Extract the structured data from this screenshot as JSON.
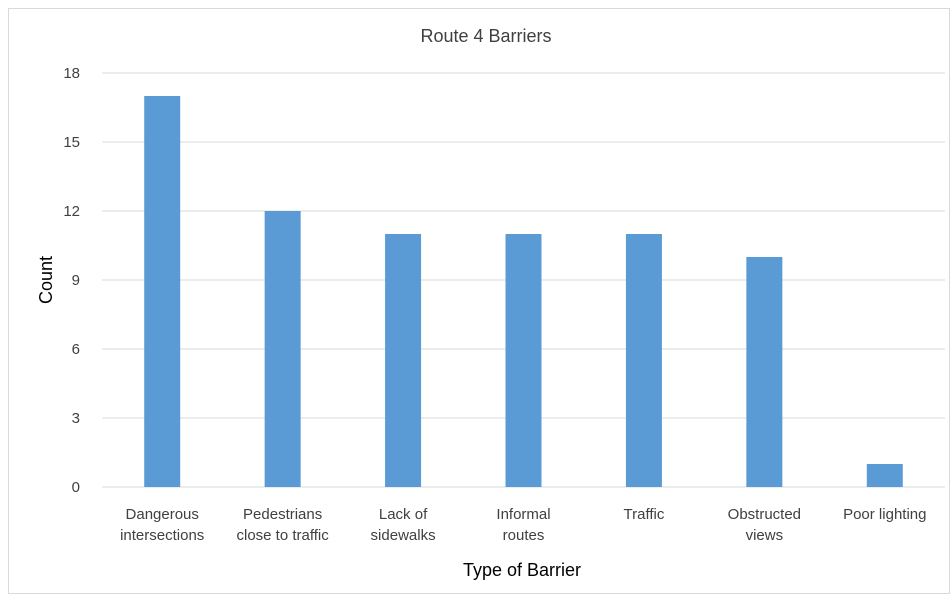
{
  "chart_data": {
    "type": "bar",
    "title": "Route 4 Barriers",
    "xlabel": "Type of Barrier",
    "ylabel": "Count",
    "categories": [
      [
        "Dangerous",
        "intersections"
      ],
      [
        "Pedestrians",
        "close to traffic"
      ],
      [
        "Lack of",
        "sidewalks"
      ],
      [
        "Informal",
        "routes"
      ],
      [
        "Traffic"
      ],
      [
        "Obstructed",
        "views"
      ],
      [
        "Poor lighting"
      ]
    ],
    "values": [
      17,
      12,
      11,
      11,
      11,
      10,
      1
    ],
    "ylim": [
      0,
      18
    ],
    "yticks": [
      0,
      3,
      6,
      9,
      12,
      15,
      18
    ],
    "bar_color": "#5b9bd5",
    "grid": true,
    "legend": "none"
  }
}
